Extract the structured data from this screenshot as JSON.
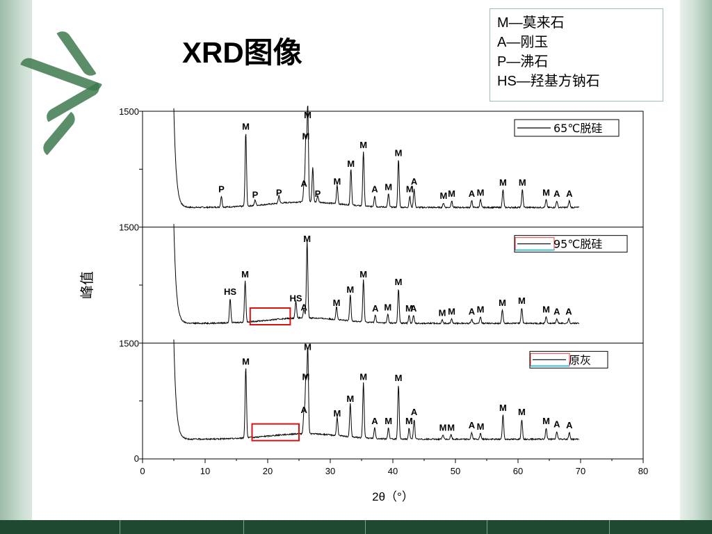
{
  "slide": {
    "title": "XRD图像",
    "legend": [
      "M—莫来石",
      "A—刚玉",
      "P—沸石",
      "HS—羟基方钠石"
    ]
  },
  "chart_data": {
    "type": "line",
    "xlabel": "2θ（°）",
    "ylabel": "峰值",
    "xlim": [
      0,
      80
    ],
    "xticks": [
      0,
      10,
      20,
      30,
      40,
      50,
      60,
      70,
      80
    ],
    "grid": false,
    "panels": [
      {
        "legend": "65℃脱硅",
        "y_max_label": "1500",
        "peaks": [
          {
            "x": 12.6,
            "y": 0.1,
            "label": "P"
          },
          {
            "x": 16.5,
            "y": 0.67,
            "label": "M"
          },
          {
            "x": 18.0,
            "y": 0.05,
            "label": "P"
          },
          {
            "x": 21.8,
            "y": 0.07,
            "label": "P"
          },
          {
            "x": 25.8,
            "y": 0.15,
            "label": "A"
          },
          {
            "x": 26.1,
            "y": 0.58,
            "label": "M"
          },
          {
            "x": 26.4,
            "y": 0.88,
            "label": "M"
          },
          {
            "x": 27.2,
            "y": 0.32,
            "label": ""
          },
          {
            "x": 28.0,
            "y": 0.06,
            "label": "P"
          },
          {
            "x": 31.1,
            "y": 0.17,
            "label": "M"
          },
          {
            "x": 33.3,
            "y": 0.33,
            "label": "M"
          },
          {
            "x": 35.3,
            "y": 0.5,
            "label": "M"
          },
          {
            "x": 37.1,
            "y": 0.1,
            "label": "A"
          },
          {
            "x": 39.3,
            "y": 0.12,
            "label": "M"
          },
          {
            "x": 40.9,
            "y": 0.43,
            "label": "M"
          },
          {
            "x": 42.7,
            "y": 0.1,
            "label": "M"
          },
          {
            "x": 43.4,
            "y": 0.17,
            "label": "A"
          },
          {
            "x": 48.1,
            "y": 0.04,
            "label": "M"
          },
          {
            "x": 49.4,
            "y": 0.06,
            "label": "M"
          },
          {
            "x": 52.6,
            "y": 0.06,
            "label": "A"
          },
          {
            "x": 54.0,
            "y": 0.07,
            "label": "M"
          },
          {
            "x": 57.6,
            "y": 0.16,
            "label": "M"
          },
          {
            "x": 60.7,
            "y": 0.16,
            "label": "M"
          },
          {
            "x": 64.5,
            "y": 0.07,
            "label": "M"
          },
          {
            "x": 66.2,
            "y": 0.06,
            "label": "A"
          },
          {
            "x": 68.2,
            "y": 0.06,
            "label": "A"
          }
        ]
      },
      {
        "legend": "95℃脱硅",
        "y_max_label": "1500",
        "peaks": [
          {
            "x": 14.0,
            "y": 0.22,
            "label": "HS"
          },
          {
            "x": 16.4,
            "y": 0.38,
            "label": "M"
          },
          {
            "x": 24.5,
            "y": 0.16,
            "label": "HS"
          },
          {
            "x": 25.8,
            "y": 0.08,
            "label": "A"
          },
          {
            "x": 26.3,
            "y": 0.7,
            "label": "M"
          },
          {
            "x": 31.0,
            "y": 0.12,
            "label": "M"
          },
          {
            "x": 33.2,
            "y": 0.24,
            "label": "M"
          },
          {
            "x": 35.3,
            "y": 0.38,
            "label": "M"
          },
          {
            "x": 37.2,
            "y": 0.07,
            "label": "A"
          },
          {
            "x": 39.2,
            "y": 0.08,
            "label": "M"
          },
          {
            "x": 40.9,
            "y": 0.31,
            "label": "M"
          },
          {
            "x": 42.6,
            "y": 0.07,
            "label": "M"
          },
          {
            "x": 43.3,
            "y": 0.07,
            "label": "A"
          },
          {
            "x": 47.9,
            "y": 0.03,
            "label": "M"
          },
          {
            "x": 49.4,
            "y": 0.04,
            "label": "M"
          },
          {
            "x": 52.6,
            "y": 0.04,
            "label": "A"
          },
          {
            "x": 54.0,
            "y": 0.06,
            "label": "M"
          },
          {
            "x": 57.5,
            "y": 0.12,
            "label": "M"
          },
          {
            "x": 60.6,
            "y": 0.14,
            "label": "M"
          },
          {
            "x": 64.5,
            "y": 0.06,
            "label": "M"
          },
          {
            "x": 66.2,
            "y": 0.04,
            "label": "A"
          },
          {
            "x": 68.1,
            "y": 0.04,
            "label": "A"
          }
        ]
      },
      {
        "legend": "原灰",
        "y_max_label": "1500",
        "y_min_label": "0",
        "peaks": [
          {
            "x": 16.5,
            "y": 0.64,
            "label": "M"
          },
          {
            "x": 25.8,
            "y": 0.2,
            "label": "A"
          },
          {
            "x": 26.1,
            "y": 0.5,
            "label": "M"
          },
          {
            "x": 26.4,
            "y": 0.78,
            "label": "M"
          },
          {
            "x": 31.1,
            "y": 0.17,
            "label": "M"
          },
          {
            "x": 33.2,
            "y": 0.3,
            "label": "M"
          },
          {
            "x": 35.3,
            "y": 0.5,
            "label": "M"
          },
          {
            "x": 37.1,
            "y": 0.1,
            "label": "A"
          },
          {
            "x": 39.3,
            "y": 0.1,
            "label": "M"
          },
          {
            "x": 40.9,
            "y": 0.49,
            "label": "M"
          },
          {
            "x": 42.6,
            "y": 0.1,
            "label": "M"
          },
          {
            "x": 43.4,
            "y": 0.18,
            "label": "A"
          },
          {
            "x": 48.0,
            "y": 0.04,
            "label": "M"
          },
          {
            "x": 49.3,
            "y": 0.04,
            "label": "M"
          },
          {
            "x": 52.6,
            "y": 0.06,
            "label": "A"
          },
          {
            "x": 54.0,
            "y": 0.05,
            "label": "M"
          },
          {
            "x": 57.6,
            "y": 0.22,
            "label": "M"
          },
          {
            "x": 60.6,
            "y": 0.18,
            "label": "M"
          },
          {
            "x": 64.5,
            "y": 0.1,
            "label": "M"
          },
          {
            "x": 66.2,
            "y": 0.07,
            "label": "A"
          },
          {
            "x": 68.2,
            "y": 0.06,
            "label": "A"
          }
        ]
      }
    ],
    "highlight_boxes": [
      {
        "panel": 1,
        "x_range": [
          17.2,
          23.6
        ]
      },
      {
        "panel": 2,
        "x_range": [
          17.5,
          25.0
        ]
      }
    ]
  }
}
